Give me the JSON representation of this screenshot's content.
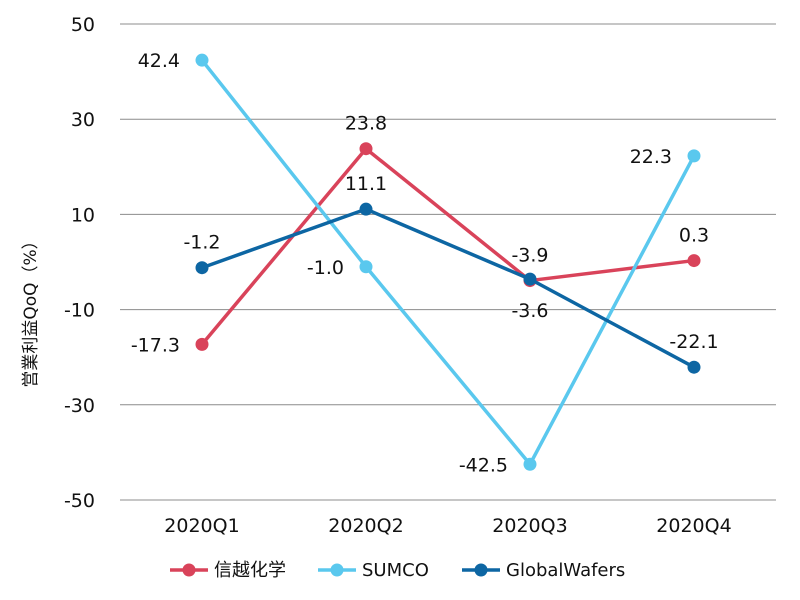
{
  "chart_data": {
    "type": "line",
    "title": "",
    "xlabel": "",
    "ylabel": "営業利益QoQ（%）",
    "ylim": [
      -50,
      50
    ],
    "yticks": [
      50,
      30,
      10,
      -10,
      -30,
      -50
    ],
    "categories": [
      "2020Q1",
      "2020Q2",
      "2020Q3",
      "2020Q4"
    ],
    "grid": true,
    "legend_position": "bottom",
    "series": [
      {
        "name": "信越化学",
        "color": "#d9435a",
        "values": [
          -17.3,
          23.8,
          -3.9,
          0.3
        ],
        "labels": [
          "-17.3",
          "23.8",
          "-3.9",
          "0.3"
        ],
        "label_positions": [
          "left",
          "above",
          "above",
          "above"
        ]
      },
      {
        "name": "SUMCO",
        "color": "#5ac8ee",
        "values": [
          42.4,
          -1.0,
          -42.5,
          22.3
        ],
        "labels": [
          "42.4",
          "-1.0",
          "-42.5",
          "22.3"
        ],
        "label_positions": [
          "left",
          "left",
          "left",
          "left"
        ]
      },
      {
        "name": "GlobalWafers",
        "color": "#0d66a3",
        "values": [
          -1.2,
          11.1,
          -3.6,
          -22.1
        ],
        "labels": [
          "-1.2",
          "11.1",
          "-3.6",
          "-22.1"
        ],
        "label_positions": [
          "above",
          "above",
          "below",
          "above"
        ]
      }
    ]
  }
}
